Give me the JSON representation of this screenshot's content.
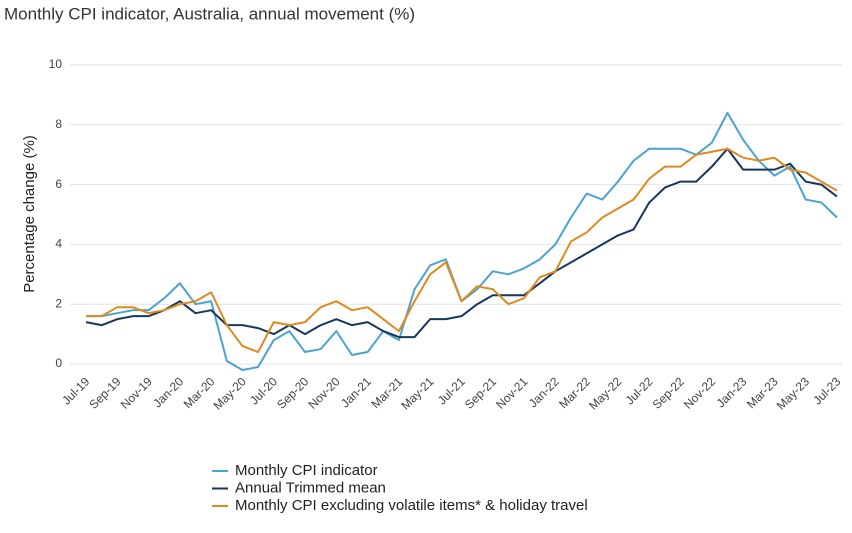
{
  "chart_data": {
    "type": "line",
    "title": "Monthly CPI indicator, Australia, annual movement (%)",
    "y_label": "Percentage change (%)",
    "categories": [
      "Jul-19",
      null,
      "Sep-19",
      null,
      "Nov-19",
      null,
      "Jan-20",
      null,
      "Mar-20",
      null,
      "May-20",
      null,
      "Jul-20",
      null,
      "Sep-20",
      null,
      "Nov-20",
      null,
      "Jan-21",
      null,
      "Mar-21",
      null,
      "May-21",
      null,
      "Jul-21",
      null,
      "Sep-21",
      null,
      "Nov-21",
      null,
      "Jan-22",
      null,
      "Mar-22",
      null,
      "May-22",
      null,
      "Jul-22",
      null,
      "Sep-22",
      null,
      "Nov-22",
      null,
      "Jan-23",
      null,
      "Mar-23",
      null,
      "May-23",
      null,
      "Jul-23"
    ],
    "series": [
      {
        "name": "Monthly CPI indicator",
        "color": "#4aa3d1",
        "values": [
          1.6,
          1.6,
          1.7,
          1.8,
          1.8,
          2.2,
          2.7,
          2.0,
          2.1,
          0.1,
          -0.2,
          -0.1,
          0.8,
          1.1,
          0.4,
          0.5,
          1.1,
          0.3,
          0.4,
          1.1,
          0.8,
          2.5,
          3.3,
          3.5,
          2.1,
          2.5,
          3.1,
          3.0,
          3.2,
          3.5,
          4.0,
          4.9,
          5.7,
          5.5,
          6.1,
          6.8,
          7.2,
          7.2,
          7.2,
          7.0,
          7.4,
          8.4,
          7.5,
          6.8,
          6.3,
          6.6,
          5.5,
          5.4,
          4.9
        ]
      },
      {
        "name": "Annual Trimmed mean",
        "color": "#17375e",
        "values": [
          1.4,
          1.3,
          1.5,
          1.6,
          1.6,
          1.8,
          2.1,
          1.7,
          1.8,
          1.3,
          1.3,
          1.2,
          1.0,
          1.3,
          1.0,
          1.3,
          1.5,
          1.3,
          1.4,
          1.1,
          0.9,
          0.9,
          1.5,
          1.5,
          1.6,
          2.0,
          2.3,
          2.3,
          2.3,
          2.7,
          3.1,
          3.4,
          3.7,
          4.0,
          4.3,
          4.5,
          5.4,
          5.9,
          6.1,
          6.1,
          6.6,
          7.2,
          6.5,
          6.5,
          6.5,
          6.7,
          6.1,
          6.0,
          5.6
        ]
      },
      {
        "name": "Monthly CPI excluding volatile items* & holiday travel",
        "color": "#e08a1e",
        "values": [
          1.6,
          1.6,
          1.9,
          1.9,
          1.7,
          1.8,
          2.0,
          2.1,
          2.4,
          1.3,
          0.6,
          0.4,
          1.4,
          1.3,
          1.4,
          1.9,
          2.1,
          1.8,
          1.9,
          1.5,
          1.1,
          2.1,
          3.0,
          3.4,
          2.1,
          2.6,
          2.5,
          2.0,
          2.2,
          2.9,
          3.1,
          4.1,
          4.4,
          4.9,
          5.2,
          5.5,
          6.2,
          6.6,
          6.6,
          7.0,
          7.1,
          7.2,
          6.9,
          6.8,
          6.9,
          6.5,
          6.4,
          6.1,
          5.8
        ]
      }
    ],
    "ylim": [
      0,
      10
    ],
    "yticks": [
      0,
      2,
      4,
      6,
      8,
      10
    ],
    "grid": true
  }
}
